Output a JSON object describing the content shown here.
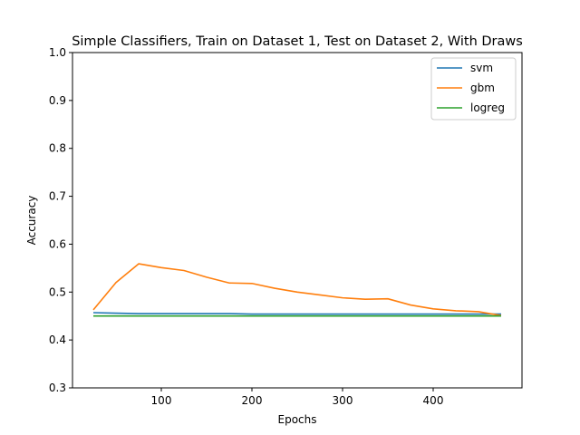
{
  "chart_data": {
    "type": "line",
    "title": "Simple Classifiers, Train on Dataset 1, Test on Dataset 2, With Draws",
    "xlabel": "Epochs",
    "ylabel": "Accuracy",
    "xlim": [
      2,
      498
    ],
    "ylim": [
      0.3,
      1.0
    ],
    "xticks": [
      100,
      200,
      300,
      400
    ],
    "yticks": [
      0.3,
      0.4,
      0.5,
      0.6,
      0.7,
      0.8,
      0.9,
      1.0
    ],
    "grid": false,
    "legend_position": "top-right",
    "x": [
      25,
      50,
      75,
      100,
      125,
      150,
      175,
      200,
      225,
      250,
      275,
      300,
      325,
      350,
      375,
      400,
      425,
      450,
      475
    ],
    "series": [
      {
        "name": "svm",
        "color": "#1f77b4",
        "values": [
          0.457,
          0.456,
          0.455,
          0.455,
          0.455,
          0.455,
          0.455,
          0.454,
          0.454,
          0.454,
          0.454,
          0.454,
          0.454,
          0.454,
          0.454,
          0.454,
          0.454,
          0.454,
          0.454
        ]
      },
      {
        "name": "gbm",
        "color": "#ff7f0e",
        "values": [
          0.463,
          0.52,
          0.559,
          0.551,
          0.545,
          0.531,
          0.519,
          0.518,
          0.508,
          0.5,
          0.494,
          0.488,
          0.485,
          0.486,
          0.473,
          0.465,
          0.461,
          0.459,
          0.451
        ]
      },
      {
        "name": "logreg",
        "color": "#2ca02c",
        "values": [
          0.45,
          0.45,
          0.45,
          0.45,
          0.45,
          0.45,
          0.45,
          0.45,
          0.45,
          0.45,
          0.45,
          0.45,
          0.45,
          0.45,
          0.45,
          0.45,
          0.45,
          0.45,
          0.45
        ]
      }
    ]
  }
}
